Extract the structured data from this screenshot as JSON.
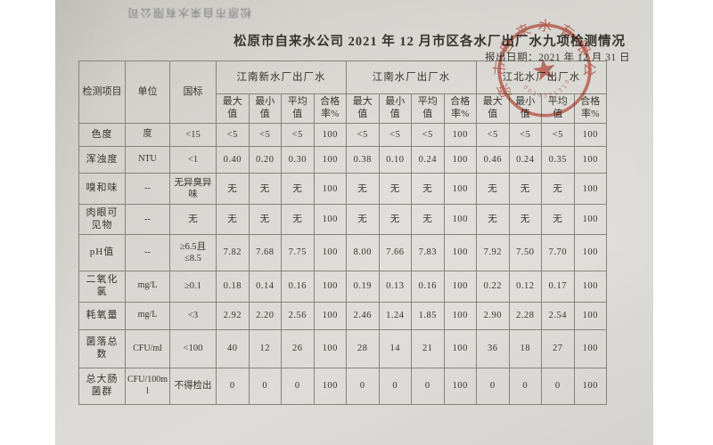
{
  "page": {
    "flipped_header": "松原市自来水有限公司",
    "title": "松原市自来水公司 2021 年 12 月市区各水厂出厂水九项检测情况",
    "report_date": "报出日期：2021 年 12 月 31 日"
  },
  "stamp": {
    "company": "松原市自来水有限公司",
    "serial": "0010321310",
    "color": "#c9503c"
  },
  "table": {
    "header": {
      "item": "检测项目",
      "unit": "单位",
      "standard": "国标",
      "plants": [
        "江南新水厂出厂水",
        "江南水厂出厂水",
        "江北水厂出厂水"
      ],
      "stats": [
        "最大值",
        "最小值",
        "平均值",
        "合格率%"
      ]
    },
    "rows": [
      {
        "item": "色度",
        "unit": "度",
        "standard": "<15",
        "values": [
          "<5",
          "<5",
          "<5",
          "100",
          "<5",
          "<5",
          "<5",
          "100",
          "<5",
          "<5",
          "<5",
          "100"
        ]
      },
      {
        "item": "浑浊度",
        "unit": "NTU",
        "standard": "<1",
        "values": [
          "0.40",
          "0.20",
          "0.30",
          "100",
          "0.38",
          "0.10",
          "0.24",
          "100",
          "0.46",
          "0.24",
          "0.35",
          "100"
        ]
      },
      {
        "item": "嗅和味",
        "unit": "--",
        "standard": "无异臭异味",
        "values": [
          "无",
          "无",
          "无",
          "100",
          "无",
          "无",
          "无",
          "100",
          "无",
          "无",
          "无",
          "100"
        ]
      },
      {
        "item": "肉眼可见物",
        "unit": "--",
        "standard": "无",
        "values": [
          "无",
          "无",
          "无",
          "100",
          "无",
          "无",
          "无",
          "100",
          "无",
          "无",
          "无",
          "100"
        ]
      },
      {
        "item": "pH值",
        "unit": "--",
        "standard": "≥6.5且≤8.5",
        "values": [
          "7.82",
          "7.68",
          "7.75",
          "100",
          "8.00",
          "7.66",
          "7.83",
          "100",
          "7.92",
          "7.50",
          "7.70",
          "100"
        ]
      },
      {
        "item": "二氧化氯",
        "unit": "mg/L",
        "standard": "≥0.1",
        "values": [
          "0.18",
          "0.14",
          "0.16",
          "100",
          "0.19",
          "0.13",
          "0.16",
          "100",
          "0.22",
          "0.12",
          "0.17",
          "100"
        ]
      },
      {
        "item": "耗氧量",
        "unit": "mg/L",
        "standard": "<3",
        "values": [
          "2.92",
          "2.20",
          "2.56",
          "100",
          "2.46",
          "1.24",
          "1.85",
          "100",
          "2.90",
          "2.28",
          "2.54",
          "100"
        ]
      },
      {
        "item": "菌落总数",
        "unit": "CFU/ml",
        "standard": "<100",
        "values": [
          "40",
          "12",
          "26",
          "100",
          "28",
          "14",
          "21",
          "100",
          "36",
          "18",
          "27",
          "100"
        ]
      },
      {
        "item": "总大肠菌群",
        "unit": "CFU/100ml",
        "standard": "不得检出",
        "values": [
          "0",
          "0",
          "0",
          "100",
          "0",
          "0",
          "0",
          "100",
          "0",
          "0",
          "0",
          "100"
        ]
      }
    ]
  }
}
